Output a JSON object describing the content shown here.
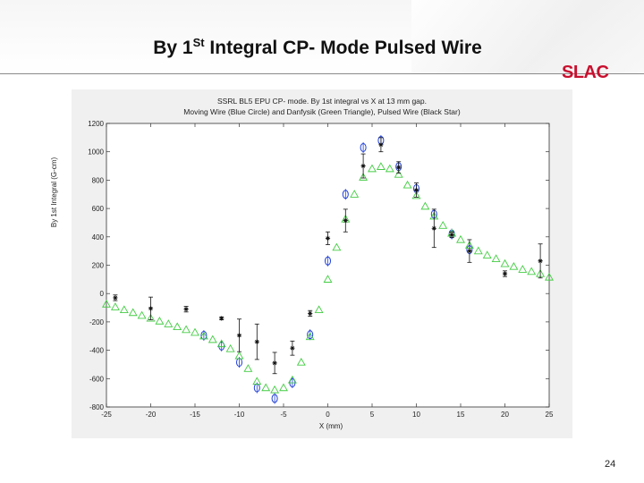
{
  "slide": {
    "title_prefix": "By 1",
    "title_sup": "St",
    "title_suffix": " Integral CP- Mode Pulsed Wire",
    "logo_text": "SLAC",
    "page_number": "24"
  },
  "chart_data": {
    "type": "scatter",
    "title": "SSRL BL5 EPU CP-  mode.  By 1st integral vs X at 13 mm gap.",
    "subtitle": "Moving Wire (Blue Circle) and Danfysik (Green Triangle), Pulsed Wire (Black Star)",
    "xlabel": "X (mm)",
    "ylabel": "By 1st Integral (G-cm)",
    "xlim": [
      -25,
      25
    ],
    "ylim": [
      -800,
      1200
    ],
    "xticks": [
      -25,
      -20,
      -15,
      -10,
      -5,
      0,
      5,
      10,
      15,
      20,
      25
    ],
    "yticks": [
      -800,
      -600,
      -400,
      -200,
      0,
      200,
      400,
      600,
      800,
      1000,
      1200
    ],
    "grid": false,
    "legend": "none",
    "series": [
      {
        "name": "Moving Wire",
        "marker": "circle",
        "color": "#1f3fd8",
        "points": [
          {
            "x": -14,
            "y": -295
          },
          {
            "x": -12,
            "y": -370
          },
          {
            "x": -10,
            "y": -485
          },
          {
            "x": -8,
            "y": -665
          },
          {
            "x": -6,
            "y": -740
          },
          {
            "x": -4,
            "y": -630
          },
          {
            "x": -2,
            "y": -290
          },
          {
            "x": 0,
            "y": 230
          },
          {
            "x": 2,
            "y": 700
          },
          {
            "x": 4,
            "y": 1030
          },
          {
            "x": 6,
            "y": 1080
          },
          {
            "x": 8,
            "y": 895
          },
          {
            "x": 10,
            "y": 740
          },
          {
            "x": 12,
            "y": 560
          },
          {
            "x": 14,
            "y": 420
          },
          {
            "x": 16,
            "y": 310
          }
        ]
      },
      {
        "name": "Danfysik",
        "marker": "triangle",
        "color": "#44cc44",
        "points": [
          {
            "x": -25,
            "y": -75
          },
          {
            "x": -24,
            "y": -95
          },
          {
            "x": -23,
            "y": -115
          },
          {
            "x": -22,
            "y": -135
          },
          {
            "x": -21,
            "y": -155
          },
          {
            "x": -20,
            "y": -175
          },
          {
            "x": -19,
            "y": -195
          },
          {
            "x": -18,
            "y": -215
          },
          {
            "x": -17,
            "y": -235
          },
          {
            "x": -16,
            "y": -255
          },
          {
            "x": -15,
            "y": -275
          },
          {
            "x": -14,
            "y": -300
          },
          {
            "x": -13,
            "y": -325
          },
          {
            "x": -12,
            "y": -355
          },
          {
            "x": -11,
            "y": -390
          },
          {
            "x": -10,
            "y": -440
          },
          {
            "x": -9,
            "y": -530
          },
          {
            "x": -8,
            "y": -620
          },
          {
            "x": -7,
            "y": -665
          },
          {
            "x": -6,
            "y": -680
          },
          {
            "x": -5,
            "y": -665
          },
          {
            "x": -4,
            "y": -610
          },
          {
            "x": -3,
            "y": -485
          },
          {
            "x": -2,
            "y": -305
          },
          {
            "x": -1,
            "y": -115
          },
          {
            "x": 0,
            "y": 100
          },
          {
            "x": 1,
            "y": 325
          },
          {
            "x": 2,
            "y": 525
          },
          {
            "x": 3,
            "y": 700
          },
          {
            "x": 4,
            "y": 820
          },
          {
            "x": 5,
            "y": 880
          },
          {
            "x": 6,
            "y": 895
          },
          {
            "x": 7,
            "y": 880
          },
          {
            "x": 8,
            "y": 840
          },
          {
            "x": 9,
            "y": 765
          },
          {
            "x": 10,
            "y": 690
          },
          {
            "x": 11,
            "y": 615
          },
          {
            "x": 12,
            "y": 545
          },
          {
            "x": 13,
            "y": 480
          },
          {
            "x": 14,
            "y": 425
          },
          {
            "x": 15,
            "y": 380
          },
          {
            "x": 16,
            "y": 340
          },
          {
            "x": 17,
            "y": 300
          },
          {
            "x": 18,
            "y": 270
          },
          {
            "x": 19,
            "y": 245
          },
          {
            "x": 20,
            "y": 210
          },
          {
            "x": 21,
            "y": 190
          },
          {
            "x": 22,
            "y": 170
          },
          {
            "x": 23,
            "y": 155
          },
          {
            "x": 24,
            "y": 140
          },
          {
            "x": 25,
            "y": 115
          }
        ]
      },
      {
        "name": "Pulsed Wire",
        "marker": "star",
        "color": "#111111",
        "points": [
          {
            "x": -24,
            "y": -30,
            "err": 20
          },
          {
            "x": -20,
            "y": -105,
            "err": 80
          },
          {
            "x": -16,
            "y": -110,
            "err": 20
          },
          {
            "x": -12,
            "y": -175,
            "err": 10
          },
          {
            "x": -10,
            "y": -295,
            "err": 115
          },
          {
            "x": -8,
            "y": -340,
            "err": 125
          },
          {
            "x": -6,
            "y": -490,
            "err": 75
          },
          {
            "x": -4,
            "y": -385,
            "err": 50
          },
          {
            "x": -2,
            "y": -140,
            "err": 20
          },
          {
            "x": 0,
            "y": 390,
            "err": 45
          },
          {
            "x": 2,
            "y": 515,
            "err": 80
          },
          {
            "x": 4,
            "y": 900,
            "err": 85
          },
          {
            "x": 6,
            "y": 1050,
            "err": 50
          },
          {
            "x": 8,
            "y": 890,
            "err": 40
          },
          {
            "x": 10,
            "y": 730,
            "err": 50
          },
          {
            "x": 12,
            "y": 460,
            "err": 135
          },
          {
            "x": 14,
            "y": 415,
            "err": 20
          },
          {
            "x": 16,
            "y": 300,
            "err": 80
          },
          {
            "x": 20,
            "y": 140,
            "err": 20
          },
          {
            "x": 24,
            "y": 230,
            "err": 120
          }
        ]
      }
    ]
  }
}
